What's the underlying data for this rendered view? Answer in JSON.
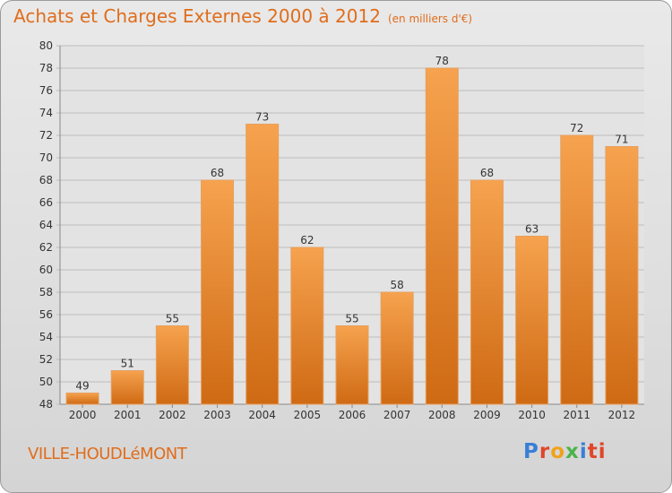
{
  "title": "Achats et Charges Externes 2000 à 2012",
  "unit": "(en milliers d'€)",
  "city": "VILLE-HOUDLéMONT",
  "logo": [
    "P",
    "r",
    "o",
    "x",
    "i",
    "ti"
  ],
  "colors": {
    "bar_top": "#f6a24e",
    "bar_bottom": "#cf6a14",
    "text_accent": "#e06d1c",
    "grid": "#bdbdbd"
  },
  "chart_data": {
    "type": "bar",
    "title": "Achats et Charges Externes 2000 à 2012",
    "categories": [
      "2000",
      "2001",
      "2002",
      "2003",
      "2004",
      "2005",
      "2006",
      "2007",
      "2008",
      "2009",
      "2010",
      "2011",
      "2012"
    ],
    "values": [
      49,
      51,
      55,
      68,
      73,
      62,
      55,
      58,
      78,
      68,
      63,
      72,
      71
    ],
    "ylim": [
      48,
      80
    ],
    "yticks": [
      48,
      50,
      52,
      54,
      56,
      58,
      60,
      62,
      64,
      66,
      68,
      70,
      72,
      74,
      76,
      78,
      80
    ],
    "grid": true,
    "xlabel": "",
    "ylabel": ""
  }
}
